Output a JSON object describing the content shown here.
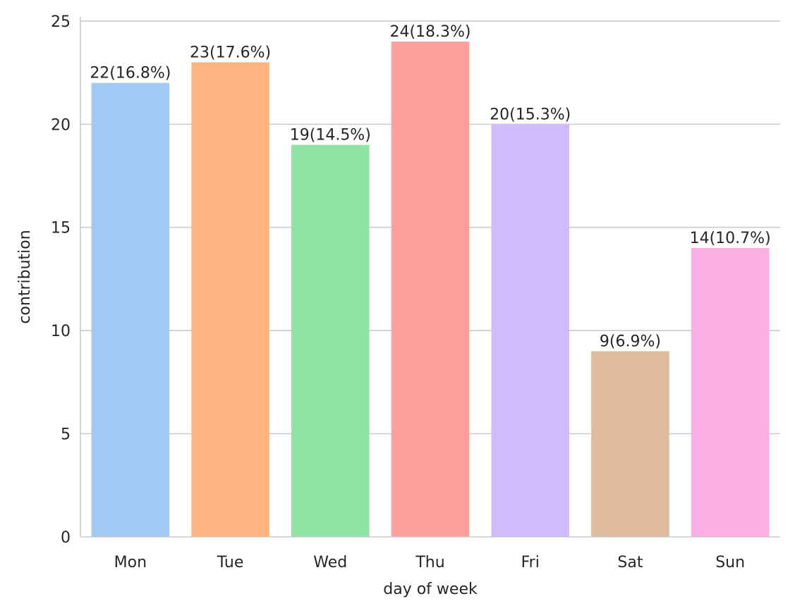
{
  "chart_data": {
    "type": "bar",
    "title": "",
    "xlabel": "day of week",
    "ylabel": "contribution",
    "categories": [
      "Mon",
      "Tue",
      "Wed",
      "Thu",
      "Fri",
      "Sat",
      "Sun"
    ],
    "values": [
      22,
      23,
      19,
      24,
      20,
      9,
      14
    ],
    "data_labels": [
      "22(16.8%)",
      "23(17.6%)",
      "19(14.5%)",
      "24(18.3%)",
      "20(15.3%)",
      "9(6.9%)",
      "14(10.7%)"
    ],
    "colors": [
      "#a1c9f4",
      "#ffb482",
      "#8de5a1",
      "#ff9f9b",
      "#d0bbff",
      "#debb9b",
      "#fab0e4"
    ],
    "ylim": [
      0,
      25.2
    ],
    "yticks": [
      0,
      5,
      10,
      15,
      20,
      25
    ],
    "grid": "y",
    "legend": "none"
  }
}
